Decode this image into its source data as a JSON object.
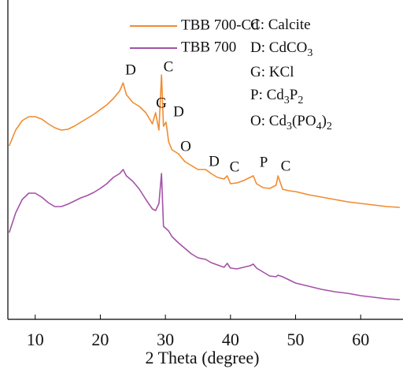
{
  "chart_data": {
    "type": "line",
    "x_label": "2 Theta (degree)",
    "xlim": [
      5.8,
      66.5
    ],
    "xticks": [
      10,
      20,
      30,
      40,
      50,
      60
    ],
    "ylim": [
      0,
      400
    ],
    "x": [
      6,
      7,
      8,
      9,
      10,
      11,
      12,
      13,
      14,
      15,
      16,
      17,
      18,
      19,
      20,
      21,
      22,
      23,
      23.5,
      24,
      25,
      26,
      27,
      28,
      28.5,
      29,
      29.4,
      29.7,
      30.1,
      30.5,
      31,
      32,
      33,
      34,
      35,
      36.2,
      37,
      38,
      39,
      39.5,
      40,
      41,
      42,
      43,
      43.5,
      44,
      45,
      46,
      47,
      47.3,
      48,
      49,
      50,
      52,
      54,
      56,
      58,
      60,
      62,
      64,
      66
    ],
    "series": [
      {
        "name": "TBB 700-Cd",
        "color": "#f28b2e",
        "values": [
          220,
          240,
          252,
          257,
          257,
          254,
          248,
          243,
          240,
          241,
          245,
          250,
          255,
          260,
          266,
          272,
          280,
          290,
          300,
          285,
          275,
          270,
          262,
          248,
          262,
          240,
          310,
          245,
          250,
          225,
          215,
          210,
          200,
          195,
          190,
          190,
          185,
          180,
          178,
          182,
          172,
          173,
          176,
          180,
          182,
          172,
          167,
          166,
          170,
          182,
          165,
          163,
          162,
          158,
          155,
          152,
          149,
          147,
          145,
          143,
          142
        ]
      },
      {
        "name": "TBB 700",
        "color": "#a452a8",
        "values": [
          110,
          135,
          152,
          160,
          160,
          155,
          148,
          143,
          143,
          146,
          150,
          154,
          157,
          161,
          166,
          172,
          180,
          185,
          190,
          182,
          175,
          165,
          152,
          140,
          138,
          147,
          185,
          118,
          115,
          112,
          105,
          97,
          90,
          83,
          78,
          76,
          72,
          69,
          66,
          71,
          65,
          64,
          66,
          68,
          70,
          65,
          60,
          55,
          54,
          56,
          54,
          50,
          46,
          42,
          38,
          35,
          33,
          30,
          28,
          26,
          25
        ]
      }
    ],
    "key": [
      "C: Calcite",
      "D: CdCO3",
      "G: KCl",
      "P: Cd3P2",
      "O: Cd3(PO4)2"
    ],
    "annotations": [
      "D",
      "C",
      "G",
      "D",
      "O",
      "D",
      "C",
      "P",
      "C"
    ]
  }
}
